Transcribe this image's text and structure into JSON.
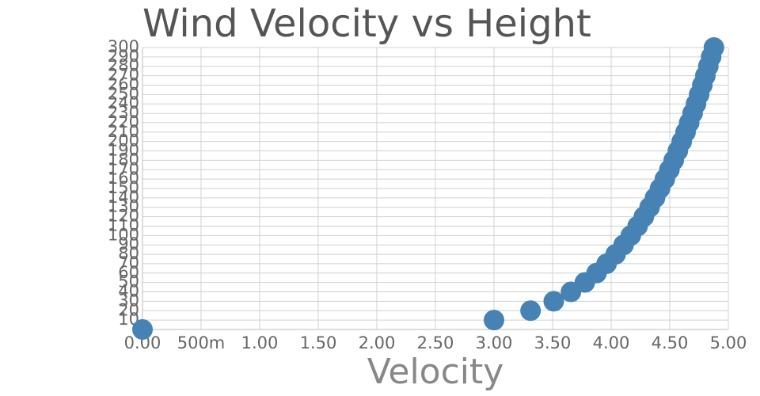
{
  "chart_data": {
    "type": "scatter",
    "title": "Wind Velocity vs Height",
    "x_label": "Velocity",
    "x": [
      0,
      3.0,
      3.312,
      3.51,
      3.657,
      3.775,
      3.875,
      3.961,
      4.038,
      4.106,
      4.168,
      4.226,
      4.279,
      4.328,
      4.374,
      4.417,
      4.458,
      4.497,
      4.534,
      4.569,
      4.602,
      4.635,
      4.666,
      4.695,
      4.724,
      4.751,
      4.778,
      4.804,
      4.829,
      4.853,
      4.877
    ],
    "values": [
      0,
      10,
      20,
      30,
      40,
      50,
      60,
      70,
      80,
      90,
      100,
      110,
      120,
      130,
      140,
      150,
      160,
      170,
      180,
      190,
      200,
      210,
      220,
      230,
      240,
      250,
      260,
      270,
      280,
      290,
      300
    ],
    "color": "#4682b4",
    "xlim": [
      0,
      5
    ],
    "xticks": [
      {
        "value": 0,
        "label": "0.00"
      },
      {
        "value": 0.5,
        "label": "500m"
      },
      {
        "value": 1,
        "label": "1.00"
      },
      {
        "value": 1.5,
        "label": "1.50"
      },
      {
        "value": 2,
        "label": "2.00"
      },
      {
        "value": 2.5,
        "label": "2.50"
      },
      {
        "value": 3,
        "label": "3.00"
      },
      {
        "value": 3.5,
        "label": "3.50"
      },
      {
        "value": 4,
        "label": "4.00"
      },
      {
        "value": 4.5,
        "label": "4.50"
      },
      {
        "value": 5,
        "label": "5.00"
      }
    ],
    "ylim": [
      0,
      300
    ],
    "yticks": [
      10,
      20,
      30,
      40,
      50,
      60,
      70,
      80,
      90,
      100,
      110,
      120,
      130,
      140,
      150,
      160,
      170,
      180,
      190,
      200,
      210,
      220,
      230,
      240,
      250,
      260,
      270,
      280,
      290,
      300
    ],
    "grid": true
  }
}
